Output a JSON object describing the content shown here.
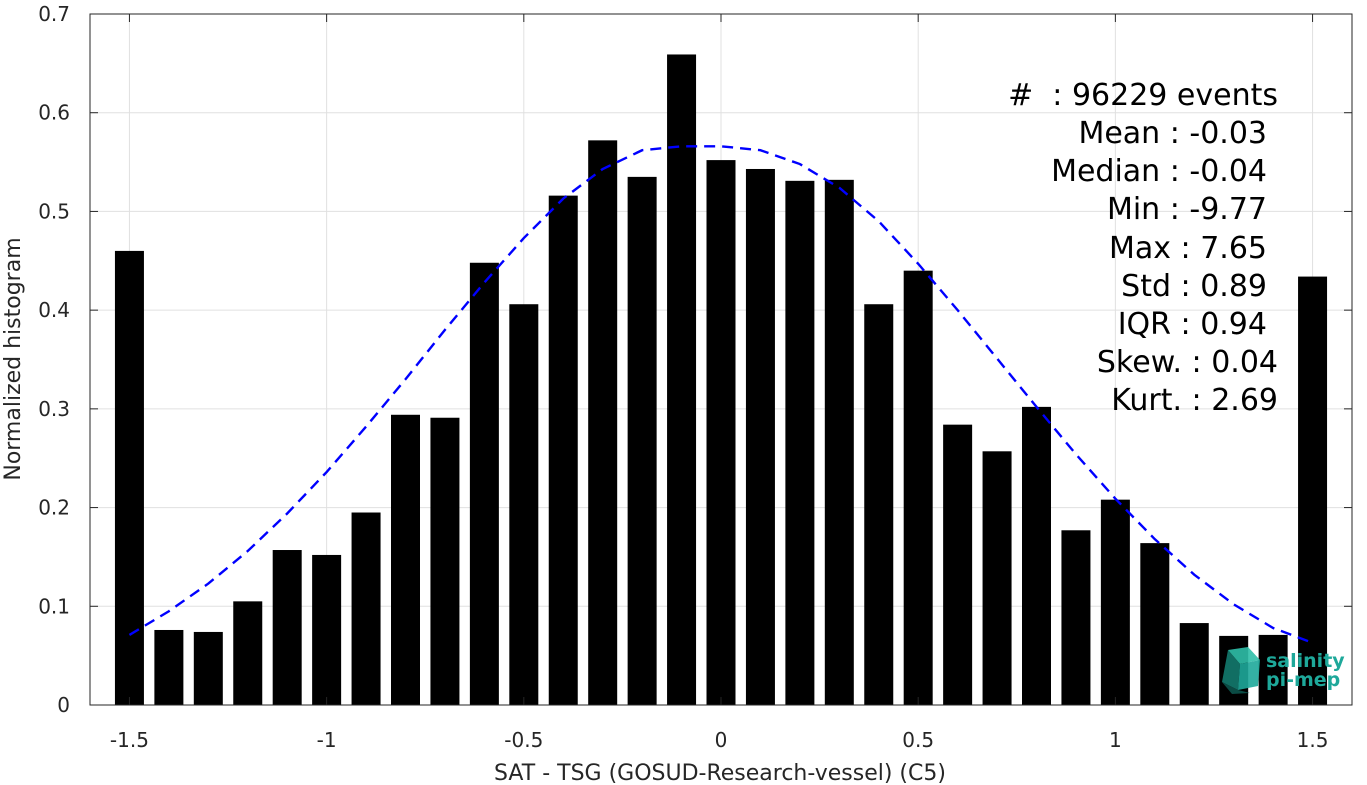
{
  "chart_data": {
    "type": "bar",
    "xlabel": "SAT - TSG (GOSUD-Research-vessel) (C5)",
    "ylabel": "Normalized histogram",
    "xlim": [
      -1.6,
      1.6
    ],
    "ylim": [
      0,
      0.7
    ],
    "xticks": [
      -1.5,
      -1,
      -0.5,
      0,
      0.5,
      1,
      1.5
    ],
    "xtick_labels": [
      "-1.5",
      "-1",
      "-0.5",
      "0",
      "0.5",
      "1",
      "1.5"
    ],
    "yticks": [
      0,
      0.1,
      0.2,
      0.3,
      0.4,
      0.5,
      0.6,
      0.7
    ],
    "ytick_labels": [
      "0",
      "0.1",
      "0.2",
      "0.3",
      "0.4",
      "0.5",
      "0.6",
      "0.7"
    ],
    "grid": true,
    "bar_color": "#000000",
    "fit_color": "#0000ff",
    "bars": [
      {
        "x": -1.5,
        "y": 0.46
      },
      {
        "x": -1.4,
        "y": 0.076
      },
      {
        "x": -1.3,
        "y": 0.074
      },
      {
        "x": -1.2,
        "y": 0.105
      },
      {
        "x": -1.1,
        "y": 0.157
      },
      {
        "x": -1.0,
        "y": 0.152
      },
      {
        "x": -0.9,
        "y": 0.195
      },
      {
        "x": -0.8,
        "y": 0.294
      },
      {
        "x": -0.7,
        "y": 0.291
      },
      {
        "x": -0.6,
        "y": 0.448
      },
      {
        "x": -0.5,
        "y": 0.406
      },
      {
        "x": -0.4,
        "y": 0.516
      },
      {
        "x": -0.3,
        "y": 0.572
      },
      {
        "x": -0.2,
        "y": 0.535
      },
      {
        "x": -0.1,
        "y": 0.659
      },
      {
        "x": 0.0,
        "y": 0.552
      },
      {
        "x": 0.1,
        "y": 0.543
      },
      {
        "x": 0.2,
        "y": 0.531
      },
      {
        "x": 0.3,
        "y": 0.532
      },
      {
        "x": 0.4,
        "y": 0.406
      },
      {
        "x": 0.5,
        "y": 0.44
      },
      {
        "x": 0.6,
        "y": 0.284
      },
      {
        "x": 0.7,
        "y": 0.257
      },
      {
        "x": 0.8,
        "y": 0.302
      },
      {
        "x": 0.9,
        "y": 0.177
      },
      {
        "x": 1.0,
        "y": 0.208
      },
      {
        "x": 1.1,
        "y": 0.164
      },
      {
        "x": 1.2,
        "y": 0.083
      },
      {
        "x": 1.3,
        "y": 0.07
      },
      {
        "x": 1.4,
        "y": 0.071
      },
      {
        "x": 1.5,
        "y": 0.434
      }
    ],
    "fit_curve": {
      "style": "dashed",
      "points": [
        [
          -1.5,
          0.071
        ],
        [
          -1.4,
          0.095
        ],
        [
          -1.3,
          0.123
        ],
        [
          -1.2,
          0.156
        ],
        [
          -1.1,
          0.194
        ],
        [
          -1.0,
          0.236
        ],
        [
          -0.9,
          0.282
        ],
        [
          -0.8,
          0.33
        ],
        [
          -0.7,
          0.38
        ],
        [
          -0.6,
          0.428
        ],
        [
          -0.5,
          0.473
        ],
        [
          -0.4,
          0.513
        ],
        [
          -0.3,
          0.543
        ],
        [
          -0.2,
          0.562
        ],
        [
          -0.1,
          0.566
        ],
        [
          0.0,
          0.566
        ],
        [
          0.1,
          0.562
        ],
        [
          0.2,
          0.548
        ],
        [
          0.3,
          0.524
        ],
        [
          0.4,
          0.49
        ],
        [
          0.5,
          0.447
        ],
        [
          0.6,
          0.4
        ],
        [
          0.7,
          0.351
        ],
        [
          0.8,
          0.302
        ],
        [
          0.9,
          0.254
        ],
        [
          1.0,
          0.209
        ],
        [
          1.1,
          0.168
        ],
        [
          1.2,
          0.132
        ],
        [
          1.3,
          0.102
        ],
        [
          1.4,
          0.078
        ],
        [
          1.5,
          0.063
        ]
      ]
    },
    "annotations": [
      "#  : 96229 events",
      "Mean : -0.03",
      "Median : -0.04",
      "Min : -9.77",
      "Max : 7.65",
      "Std : 0.89",
      "IQR : 0.94",
      "Skew. : 0.04",
      "Kurt. : 2.69"
    ]
  },
  "logo": {
    "line1": "salinity",
    "line2": "pi-mep",
    "color": "#1ea89a"
  }
}
